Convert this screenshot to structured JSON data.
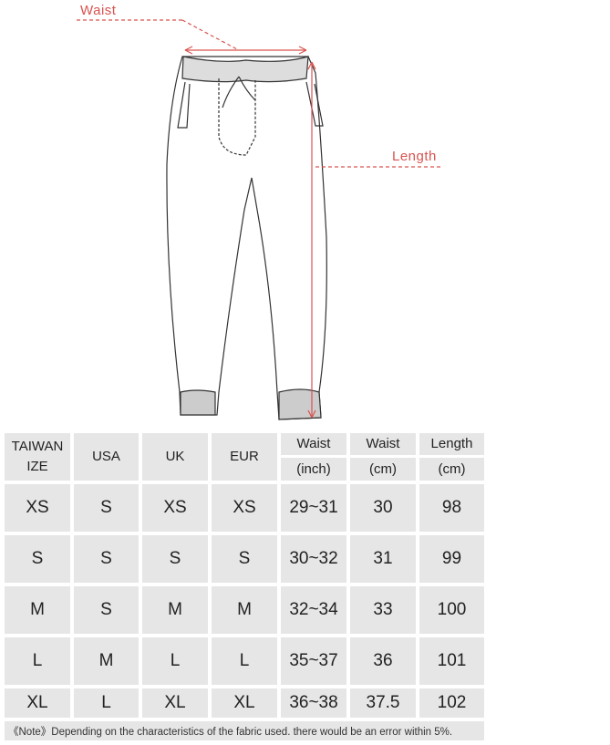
{
  "labels": {
    "waist": "Waist",
    "length": "Length"
  },
  "colors": {
    "accent": "#d9534f",
    "cell": "#e6e6e6"
  },
  "table": {
    "headers": [
      {
        "top": "TAIWAN",
        "bottom": "IZE"
      },
      {
        "top": "USA"
      },
      {
        "top": "UK"
      },
      {
        "top": "EUR"
      },
      {
        "top": "Waist",
        "bottom": "(inch)"
      },
      {
        "top": "Waist",
        "bottom": "(cm)"
      },
      {
        "top": "Length",
        "bottom": "(cm)"
      }
    ],
    "rows": [
      [
        "XS",
        "S",
        "XS",
        "XS",
        "29~31",
        "30",
        "98"
      ],
      [
        "S",
        "S",
        "S",
        "S",
        "30~32",
        "31",
        "99"
      ],
      [
        "M",
        "S",
        "M",
        "M",
        "32~34",
        "33",
        "100"
      ],
      [
        "L",
        "M",
        "L",
        "L",
        "35~37",
        "36",
        "101"
      ],
      [
        "XL",
        "L",
        "XL",
        "XL",
        "36~38",
        "37.5",
        "102"
      ]
    ],
    "note": "《Note》Depending on the characteristics of the fabric used. there would be an error within 5%."
  }
}
